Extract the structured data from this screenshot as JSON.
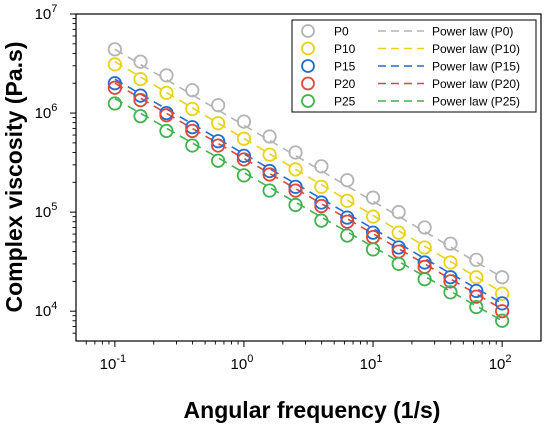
{
  "chart_data": {
    "type": "scatter",
    "title": "",
    "xlabel": "Angular frequency (1/s)",
    "ylabel": "Complex viscosity (Pa.s)",
    "xscale": "log",
    "yscale": "log",
    "xlim": [
      0.05,
      200
    ],
    "ylim": [
      5000,
      10000000
    ],
    "x_ticks": [
      {
        "value": 0.1,
        "base": "10",
        "exp": "-1"
      },
      {
        "value": 1,
        "base": "10",
        "exp": "0"
      },
      {
        "value": 10,
        "base": "10",
        "exp": "1"
      },
      {
        "value": 100,
        "base": "10",
        "exp": "2"
      }
    ],
    "y_ticks": [
      {
        "value": 10000,
        "base": "10",
        "exp": "4"
      },
      {
        "value": 100000,
        "base": "10",
        "exp": "5"
      },
      {
        "value": 1000000,
        "base": "10",
        "exp": "6"
      },
      {
        "value": 10000000,
        "base": "10",
        "exp": "7"
      }
    ],
    "legend_position": "top-right",
    "grid": false,
    "x": [
      0.1,
      0.158,
      0.251,
      0.398,
      0.631,
      1,
      1.58,
      2.51,
      3.98,
      6.31,
      10,
      15.8,
      25.1,
      39.8,
      63.1,
      100
    ],
    "series": [
      {
        "name": "P0",
        "fit_name": "Power law (P0)",
        "color": "#b4b4b4",
        "values": [
          4400000,
          3300000,
          2400000,
          1700000,
          1200000,
          820000,
          580000,
          400000,
          290000,
          210000,
          140000,
          100000,
          70000,
          48000,
          33000,
          22000
        ],
        "fit": [
          4400000,
          0.1,
          100,
          22000
        ]
      },
      {
        "name": "P10",
        "fit_name": "Power law (P10)",
        "color": "#e8d21a",
        "values": [
          3100000,
          2200000,
          1600000,
          1100000,
          790000,
          550000,
          380000,
          270000,
          180000,
          130000,
          90000,
          62000,
          44000,
          31000,
          22000,
          15000
        ],
        "fit": [
          3300000,
          0.1,
          100,
          15500
        ]
      },
      {
        "name": "P15",
        "fit_name": "Power law (P15)",
        "color": "#1f6fd1",
        "values": [
          2000000,
          1500000,
          1000000,
          720000,
          520000,
          370000,
          260000,
          180000,
          125000,
          88000,
          62000,
          44000,
          31000,
          22000,
          16000,
          12000
        ],
        "fit": [
          2200000,
          0.1,
          100,
          12000
        ]
      },
      {
        "name": "P20",
        "fit_name": "Power law (P20)",
        "color": "#e0473a",
        "values": [
          1800000,
          1350000,
          950000,
          660000,
          470000,
          340000,
          240000,
          165000,
          115000,
          80000,
          56000,
          40000,
          28000,
          20000,
          14000,
          10000
        ],
        "fit": [
          2000000,
          0.1,
          100,
          10500
        ]
      },
      {
        "name": "P25",
        "fit_name": "Power law (P25)",
        "color": "#3fb34f",
        "values": [
          1250000,
          930000,
          660000,
          470000,
          330000,
          235000,
          165000,
          118000,
          82000,
          58000,
          42000,
          30000,
          21000,
          15500,
          11000,
          8000
        ],
        "fit": [
          1400000,
          0.1,
          100,
          8000
        ]
      }
    ]
  }
}
